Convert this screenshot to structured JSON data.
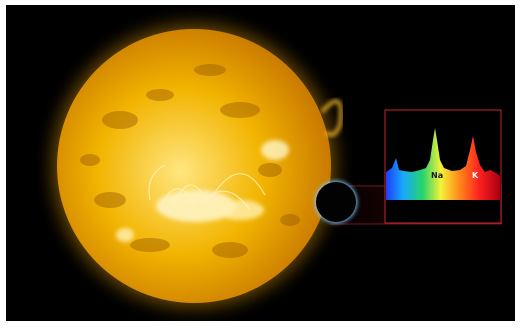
{
  "scene": {
    "background_color": "#000000",
    "frame_color": "#ffffff",
    "sun": {
      "icon": "sun-photo",
      "core_color": "#ffe680",
      "mid_color": "#f2b400",
      "edge_color": "#c97a00",
      "corona_color": "#ffb000"
    },
    "planet": {
      "icon": "transiting-planet",
      "body_color": "#020202",
      "rim_color": "#7fc8ff"
    },
    "spectrum": {
      "frame_color": "#c2262b",
      "beam_color": "#7a0f12",
      "peaks": [
        {
          "label": "Na",
          "label_color": "#1a1a1a"
        },
        {
          "label": "K",
          "label_color": "#ffffff"
        }
      ]
    }
  }
}
